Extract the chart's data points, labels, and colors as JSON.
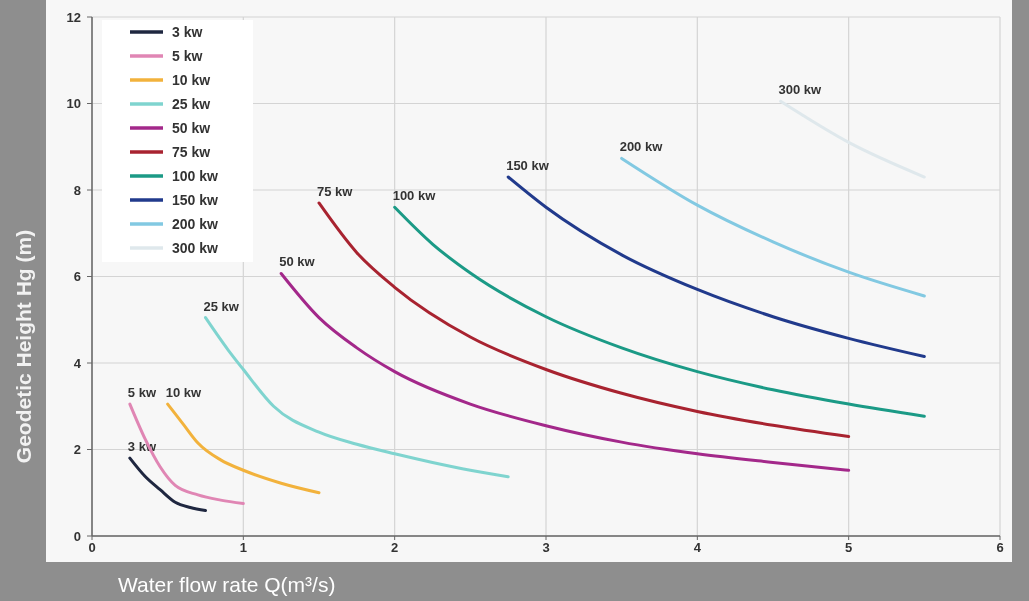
{
  "chart_data": {
    "type": "line",
    "xlabel": "Water flow rate Q(m³/s)",
    "ylabel": "Geodetic Height Hg (m)",
    "xlim": [
      0,
      6
    ],
    "ylim": [
      0,
      12
    ],
    "xticks": [
      0,
      1,
      2,
      3,
      4,
      5,
      6
    ],
    "yticks": [
      0,
      2,
      4,
      6,
      8,
      10,
      12
    ],
    "grid": true,
    "legend": "top left",
    "series": [
      {
        "name": "3 kw",
        "color": "#1f2740",
        "x": [
          0.25,
          0.35,
          0.45,
          0.55,
          0.65,
          0.75
        ],
        "values": [
          1.8,
          1.38,
          1.07,
          0.78,
          0.66,
          0.59
        ]
      },
      {
        "name": "5 kw",
        "color": "#e086b4",
        "x": [
          0.25,
          0.35,
          0.45,
          0.55,
          0.7,
          0.85,
          1.0
        ],
        "values": [
          3.05,
          2.25,
          1.6,
          1.17,
          0.95,
          0.83,
          0.75
        ]
      },
      {
        "name": "10 kw",
        "color": "#f2b23c",
        "x": [
          0.5,
          0.6,
          0.7,
          0.85,
          1.0,
          1.25,
          1.5
        ],
        "values": [
          3.05,
          2.6,
          2.15,
          1.76,
          1.52,
          1.22,
          1.0
        ]
      },
      {
        "name": "25 kw",
        "color": "#7fd4cf",
        "x": [
          0.75,
          0.9,
          1.0,
          1.2,
          1.5,
          1.75,
          2.0,
          2.25,
          2.5,
          2.75
        ],
        "values": [
          5.05,
          4.3,
          3.85,
          3.0,
          2.4,
          2.12,
          1.9,
          1.7,
          1.52,
          1.37
        ]
      },
      {
        "name": "50 kw",
        "color": "#a3288a",
        "x": [
          1.25,
          1.5,
          1.75,
          2.0,
          2.5,
          3.0,
          3.5,
          4.0,
          4.5,
          5.0
        ],
        "values": [
          6.07,
          5.05,
          4.35,
          3.8,
          3.05,
          2.55,
          2.17,
          1.9,
          1.7,
          1.52
        ]
      },
      {
        "name": "75 kw",
        "color": "#a82330",
        "x": [
          1.5,
          1.75,
          2.0,
          2.5,
          3.0,
          3.5,
          4.0,
          4.5,
          5.0
        ],
        "values": [
          7.7,
          6.55,
          5.75,
          4.6,
          3.85,
          3.3,
          2.88,
          2.56,
          2.3
        ]
      },
      {
        "name": "100 kw",
        "color": "#1b9a86",
        "x": [
          2.0,
          2.25,
          2.5,
          3.0,
          3.5,
          4.0,
          4.5,
          5.0,
          5.5
        ],
        "values": [
          7.6,
          6.75,
          6.08,
          5.07,
          4.35,
          3.8,
          3.38,
          3.05,
          2.77
        ]
      },
      {
        "name": "150 kw",
        "color": "#213a8c",
        "x": [
          2.75,
          3.0,
          3.5,
          4.0,
          4.5,
          5.0,
          5.5
        ],
        "values": [
          8.3,
          7.6,
          6.5,
          5.7,
          5.07,
          4.57,
          4.15
        ]
      },
      {
        "name": "200 kw",
        "color": "#82c9e2",
        "x": [
          3.5,
          4.0,
          4.5,
          5.0,
          5.5
        ],
        "values": [
          8.73,
          7.65,
          6.8,
          6.1,
          5.55
        ]
      },
      {
        "name": "300 kw",
        "color": "#dfe8ec",
        "x": [
          4.55,
          5.0,
          5.5
        ],
        "values": [
          10.05,
          9.1,
          8.3
        ]
      }
    ]
  }
}
